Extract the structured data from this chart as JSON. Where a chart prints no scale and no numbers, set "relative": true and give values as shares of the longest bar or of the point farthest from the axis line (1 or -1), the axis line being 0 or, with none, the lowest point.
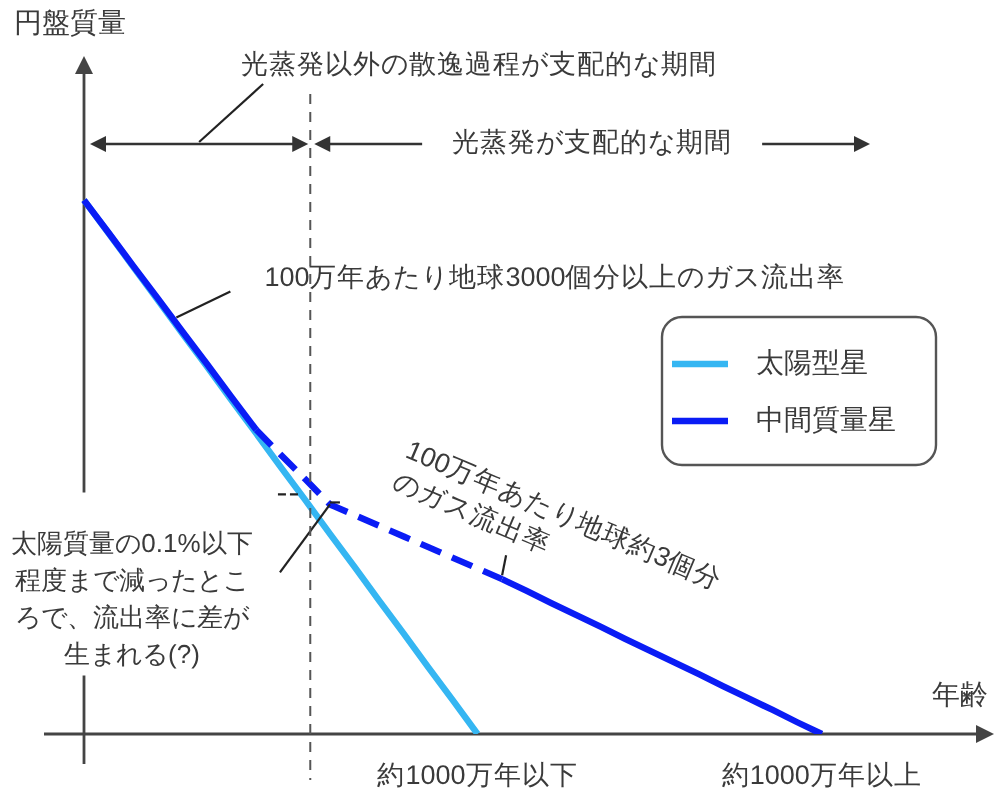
{
  "chart_data": {
    "type": "line",
    "xlabel": "年齢",
    "relative": true,
    "categories": [
      null,
      null,
      null,
      null,
      null,
      null,
      null,
      null,
      null,
      null,
      null,
      null,
      null,
      null,
      null,
      null,
      "約1000万年以下",
      null,
      null,
      null,
      null,
      null,
      null,
      null,
      null,
      null,
      null,
      null,
      null,
      null,
      "約1000万年以上",
      null,
      null,
      null,
      null,
      null,
      null,
      null
    ],
    "tick_labels": "x",
    "grid": false,
    "legend": "right",
    "marker": "none",
    "series": [
      {
        "name": "太陽型星",
        "color": "#35b6f2",
        "line_style": "solid",
        "values": [
          1,
          0.938,
          0.875,
          0.813,
          0.75,
          0.688,
          0.625,
          0.563,
          0.5,
          0.438,
          0.375,
          0.313,
          0.25,
          0.188,
          0.125,
          0.063,
          0,
          null,
          null,
          null,
          null,
          null,
          null,
          null,
          null,
          null,
          null,
          null,
          null,
          null,
          null,
          null,
          null,
          null,
          null,
          null,
          null,
          null
        ]
      },
      {
        "name": "中間質量星",
        "color": "#0a1cf5",
        "line_style": "solid",
        "values": [
          1,
          0.939,
          0.877,
          0.816,
          0.754,
          0.693,
          0.631,
          0.57,
          null,
          null,
          null,
          null,
          null,
          null,
          null,
          null,
          null,
          null,
          null,
          null,
          null,
          null,
          null,
          null,
          null,
          null,
          null,
          null,
          null,
          null,
          null,
          null,
          null,
          null,
          null,
          null,
          null,
          null
        ]
      },
      {
        "color": "#0a1cf5",
        "line_style": "dashed",
        "values": [
          null,
          null,
          null,
          null,
          null,
          null,
          null,
          0.57,
          0.523,
          0.477,
          0.43,
          0.41,
          0.39,
          0.37,
          0.35,
          0.33,
          0.31,
          0.29,
          null,
          null,
          null,
          null,
          null,
          null,
          null,
          null,
          null,
          null,
          null,
          null,
          null,
          null,
          null,
          null,
          null,
          null,
          null,
          null
        ]
      },
      {
        "color": "#0a1cf5",
        "line_style": "solid",
        "values": [
          null,
          null,
          null,
          null,
          null,
          null,
          null,
          null,
          null,
          null,
          null,
          null,
          null,
          null,
          null,
          null,
          null,
          0.29,
          0.268,
          0.245,
          0.223,
          0.201,
          0.178,
          0.156,
          0.134,
          0.112,
          0.089,
          0.067,
          0.045,
          0.022,
          0,
          null,
          null,
          null,
          null,
          null,
          null,
          null
        ]
      }
    ],
    "annotations": [
      "光蒸発以外の散逸過程が支配的な期間",
      "光蒸発が支配的な期間",
      "100万年あたり地球3000個分以上のガス流出率",
      "100万年あたり地球約3個分のガス流出率",
      "太陽質量の0.1%以下程度まで減ったところで、流出率に差が生まれる(?)",
      "円盤質量"
    ]
  }
}
